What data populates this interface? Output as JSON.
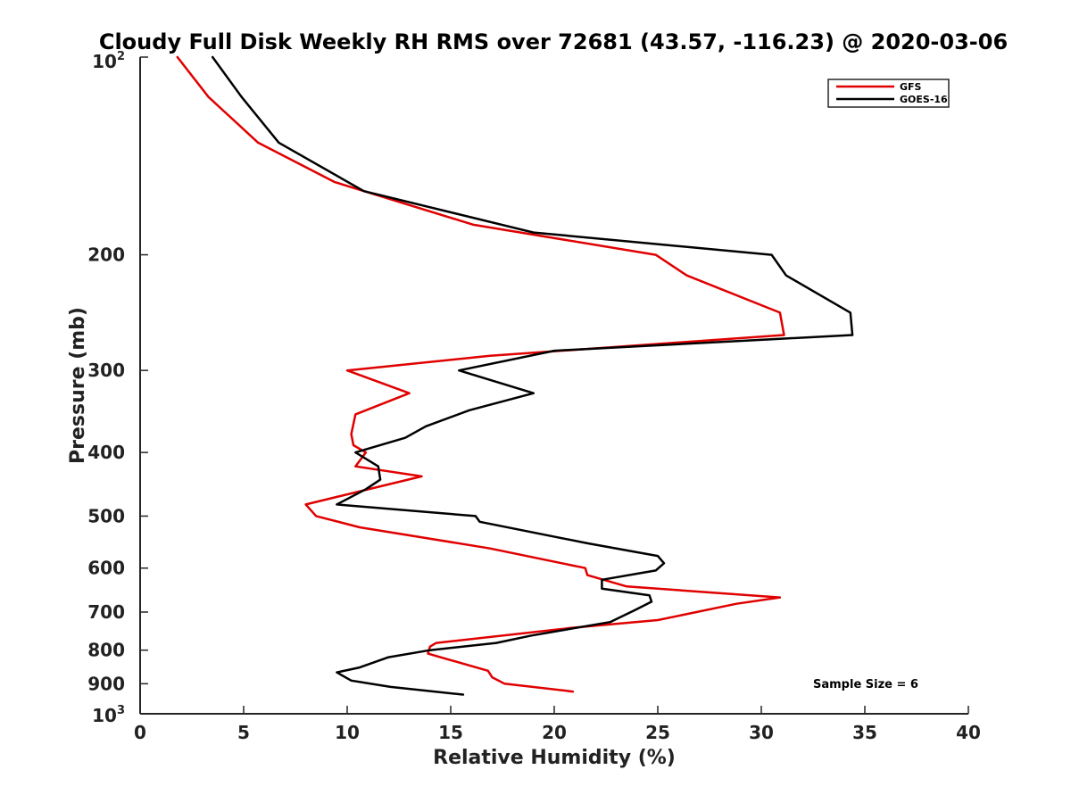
{
  "chart_data": {
    "type": "line",
    "title": "Cloudy Full Disk Weekly RH RMS over 72681 (43.57, -116.23) @ 2020-03-06",
    "xlabel": "Relative Humidity (%)",
    "ylabel": "Pressure (mb)",
    "xlim": [
      0,
      40
    ],
    "ylim": [
      100,
      1000
    ],
    "y_scale": "log",
    "y_reversed": true,
    "x_ticks": [
      0,
      5,
      10,
      15,
      20,
      25,
      30,
      35,
      40
    ],
    "x_tick_labels": [
      "0",
      "5",
      "10",
      "15",
      "20",
      "25",
      "30",
      "35",
      "40"
    ],
    "y_ticks": [
      200,
      300,
      400,
      500,
      600,
      700,
      800,
      900
    ],
    "y_tick_labels": [
      "200",
      "300",
      "400",
      "500",
      "600",
      "700",
      "800",
      "900"
    ],
    "y_end_labels": {
      "top_base": "10",
      "top_exp": "2",
      "bottom_base": "10",
      "bottom_exp": "3"
    },
    "grid": false,
    "legend_position": "top-right",
    "annotation": "Sample Size = 6",
    "series": [
      {
        "name": "GFS",
        "color": "#e00000",
        "x": [
          1.8,
          3.3,
          5.7,
          9.4,
          16.1,
          24.9,
          26.4,
          30.9,
          31.1,
          16.9,
          10.0,
          13.0,
          10.4,
          10.2,
          10.3,
          10.9,
          10.4,
          13.6,
          8.0,
          8.5,
          10.6,
          16.9,
          21.5,
          21.6,
          23.5,
          30.9,
          28.8,
          25.0,
          20.8,
          14.3,
          14.0,
          13.9,
          16.8,
          17.0,
          17.6,
          20.9
        ],
        "y": [
          100,
          115,
          135,
          155,
          180,
          200,
          215,
          245,
          265,
          285,
          300,
          325,
          350,
          375,
          390,
          400,
          420,
          435,
          480,
          500,
          520,
          560,
          600,
          615,
          640,
          665,
          680,
          720,
          740,
          780,
          790,
          810,
          860,
          880,
          900,
          925
        ]
      },
      {
        "name": "GOES-16",
        "color": "#000000",
        "x": [
          3.5,
          4.9,
          6.7,
          10.8,
          19.0,
          30.5,
          31.2,
          34.3,
          34.4,
          20.0,
          15.4,
          19.0,
          15.9,
          13.8,
          12.8,
          10.4,
          11.5,
          11.6,
          10.9,
          9.5,
          16.2,
          16.4,
          21.6,
          25.0,
          25.3,
          24.9,
          22.3,
          22.3,
          24.6,
          24.7,
          23.9,
          22.7,
          18.9,
          17.2,
          14.0,
          12.0,
          10.6,
          9.5,
          10.2,
          12.1,
          15.6
        ],
        "y": [
          100,
          115,
          135,
          160,
          185,
          200,
          215,
          245,
          265,
          280,
          300,
          325,
          345,
          365,
          380,
          400,
          420,
          440,
          455,
          480,
          500,
          510,
          550,
          575,
          590,
          605,
          625,
          645,
          660,
          675,
          695,
          725,
          760,
          780,
          800,
          820,
          850,
          865,
          890,
          910,
          935
        ]
      }
    ]
  }
}
